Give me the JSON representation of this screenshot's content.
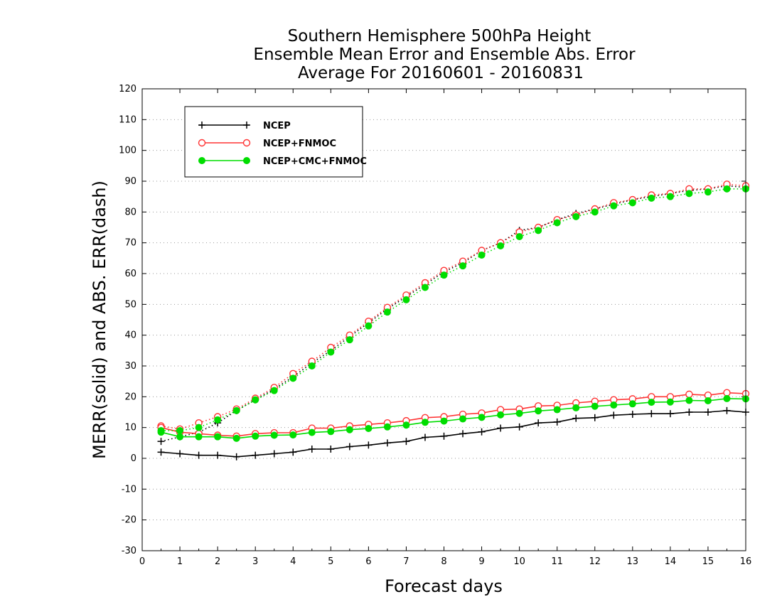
{
  "chart_data": {
    "type": "line",
    "title_lines": [
      "Southern Hemisphere 500hPa Height",
      "Ensemble Mean Error and Ensemble Abs. Error",
      "Average For 20160601 - 20160831"
    ],
    "xlabel": "Forecast days",
    "ylabel": "MERR(solid) and ABS. ERR(dash)",
    "xlim": [
      0,
      16
    ],
    "ylim": [
      -30,
      120
    ],
    "xticks": [
      0,
      1,
      2,
      3,
      4,
      5,
      6,
      7,
      8,
      9,
      10,
      11,
      12,
      13,
      14,
      15,
      16
    ],
    "yticks": [
      -30,
      -20,
      -10,
      0,
      10,
      20,
      30,
      40,
      50,
      60,
      70,
      80,
      90,
      100,
      110,
      120
    ],
    "grid": "horizontal dotted",
    "legend_position": "top-left",
    "x": [
      0.5,
      1,
      1.5,
      2,
      2.5,
      3,
      3.5,
      4,
      4.5,
      5,
      5.5,
      6,
      6.5,
      7,
      7.5,
      8,
      8.5,
      9,
      9.5,
      10,
      10.5,
      11,
      11.5,
      12,
      12.5,
      13,
      13.5,
      14,
      14.5,
      15,
      15.5,
      16
    ],
    "series": [
      {
        "name": "NCEP",
        "color": "#000000",
        "marker": "plus",
        "merr": [
          2,
          1.5,
          1,
          1,
          0.5,
          1,
          1.5,
          2,
          3,
          3,
          3.8,
          4.3,
          5,
          5.5,
          6.8,
          7.2,
          8,
          8.6,
          9.8,
          10.2,
          11.5,
          11.8,
          13,
          13.2,
          14,
          14.3,
          14.5,
          14.5,
          15,
          15,
          15.5,
          15
        ],
        "abs_err": [
          5.5,
          7,
          8.5,
          11.5,
          15.5,
          19,
          22.5,
          26.5,
          31,
          35,
          39.5,
          44,
          48.5,
          52.5,
          56.5,
          60.5,
          63.5,
          67.5,
          70,
          74,
          75,
          77.5,
          79.5,
          81,
          82.5,
          84,
          85,
          86,
          87,
          87.5,
          88.5,
          88
        ]
      },
      {
        "name": "NCEP+FNMOC",
        "color": "#ff3333",
        "marker": "open-circle",
        "merr": [
          10,
          8.5,
          8,
          7.5,
          7.2,
          8,
          8.3,
          8.3,
          9.8,
          9.8,
          10.5,
          11,
          11.5,
          12.2,
          13.2,
          13.5,
          14.3,
          14.7,
          15.8,
          16,
          17,
          17.2,
          18,
          18.5,
          19,
          19.3,
          20,
          20,
          20.8,
          20.5,
          21.3,
          21
        ],
        "abs_err": [
          10.5,
          9.5,
          11.5,
          13.5,
          16,
          19.5,
          23,
          27.5,
          31.5,
          36,
          40,
          44.5,
          49,
          53,
          57,
          61,
          64,
          67.5,
          70,
          73.5,
          75,
          77.5,
          79,
          81,
          83,
          84,
          85.5,
          86,
          87.5,
          87.5,
          89,
          88.5
        ]
      },
      {
        "name": "NCEP+CMC+FNMOC",
        "color": "#00dd00",
        "marker": "filled-circle",
        "merr": [
          8.5,
          7,
          7,
          7,
          6.5,
          7.2,
          7.5,
          7.6,
          8.4,
          8.7,
          9.3,
          9.7,
          10.2,
          10.8,
          11.7,
          12.1,
          12.8,
          13.3,
          14.1,
          14.6,
          15.4,
          15.8,
          16.4,
          16.9,
          17.3,
          17.7,
          18.2,
          18.3,
          18.8,
          18.7,
          19.4,
          19.3
        ],
        "abs_err": [
          9,
          9,
          10,
          12.5,
          15.5,
          19,
          22,
          26,
          30,
          34.5,
          38.5,
          43,
          47.5,
          51.5,
          55.5,
          59.5,
          62.5,
          66,
          69,
          72,
          74,
          76.5,
          78.5,
          80,
          82,
          83,
          84.5,
          85,
          86,
          86.5,
          87.5,
          87.5
        ]
      }
    ]
  }
}
